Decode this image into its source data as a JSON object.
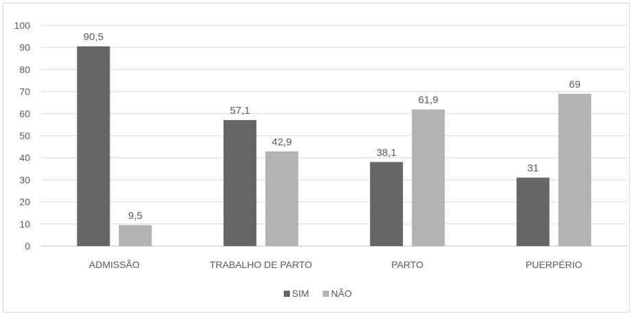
{
  "chart_data": {
    "type": "bar",
    "categories": [
      "ADMISSÃO",
      "TRABALHO DE PARTO",
      "PARTO",
      "PUERPÉRIO"
    ],
    "series": [
      {
        "name": "SIM",
        "values": [
          90.5,
          57.1,
          38.1,
          31
        ],
        "labels": [
          "90,5",
          "57,1",
          "38,1",
          "31"
        ],
        "color": "#666666"
      },
      {
        "name": "NÃO",
        "values": [
          9.5,
          42.9,
          61.9,
          69
        ],
        "labels": [
          "9,5",
          "42,9",
          "61,9",
          "69"
        ],
        "color": "#b3b3b3"
      }
    ],
    "ylim": [
      0,
      100
    ],
    "yticks": [
      "0",
      "10",
      "20",
      "30",
      "40",
      "50",
      "60",
      "70",
      "80",
      "90",
      "100"
    ],
    "grid": true,
    "legend_position": "bottom-center",
    "title": "",
    "xlabel": "",
    "ylabel": ""
  }
}
